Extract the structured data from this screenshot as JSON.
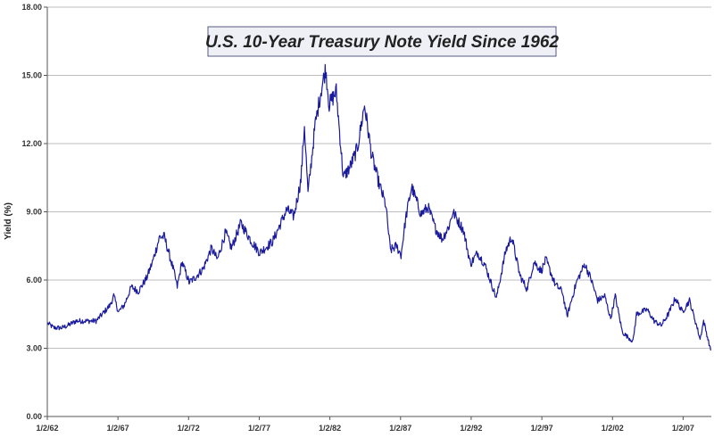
{
  "chart_data": {
    "type": "line",
    "title": "U.S. 10-Year Treasury Note Yield Since 1962",
    "xlabel": "",
    "ylabel": "Yield (%)",
    "ylim": [
      0,
      18
    ],
    "xlim": [
      "1/2/62",
      "12/31/08"
    ],
    "y_ticks": [
      "0.00",
      "3.00",
      "6.00",
      "9.00",
      "12.00",
      "15.00",
      "18.00"
    ],
    "x_ticks": [
      "1/2/62",
      "1/2/67",
      "1/2/72",
      "1/2/77",
      "1/2/82",
      "1/2/87",
      "1/2/92",
      "1/2/97",
      "1/2/02",
      "1/2/07"
    ],
    "grid": "horizontal",
    "line_color": "#1a1a9c",
    "series": [
      {
        "x": [
          "1962-01",
          "1962-06",
          "1963-01",
          "1963-06",
          "1964-01",
          "1964-06",
          "1965-01",
          "1965-06",
          "1966-01",
          "1966-06",
          "1966-09",
          "1967-01",
          "1967-06",
          "1967-12",
          "1968-06",
          "1969-01",
          "1969-06",
          "1969-12",
          "1970-04",
          "1970-12",
          "1971-03",
          "1971-07",
          "1972-01",
          "1972-06",
          "1973-01",
          "1973-08",
          "1974-01",
          "1974-08",
          "1975-01",
          "1975-09",
          "1976-06",
          "1977-01",
          "1977-12",
          "1978-06",
          "1978-12",
          "1979-06",
          "1979-12",
          "1980-03",
          "1980-06",
          "1980-12",
          "1981-05",
          "1981-09",
          "1981-12",
          "1982-06",
          "1982-12",
          "1983-06",
          "1983-12",
          "1984-06",
          "1984-12",
          "1985-06",
          "1985-12",
          "1986-04",
          "1986-09",
          "1987-01",
          "1987-05",
          "1987-10",
          "1988-06",
          "1988-12",
          "1989-06",
          "1989-12",
          "1990-06",
          "1990-09",
          "1991-06",
          "1991-12",
          "1992-06",
          "1992-12",
          "1993-06",
          "1993-10",
          "1994-06",
          "1994-11",
          "1995-06",
          "1995-12",
          "1996-06",
          "1996-12",
          "1997-04",
          "1997-12",
          "1998-06",
          "1998-10",
          "1999-06",
          "2000-01",
          "2000-06",
          "2000-12",
          "2001-06",
          "2001-11",
          "2002-03",
          "2002-09",
          "2003-06",
          "2003-09",
          "2004-06",
          "2004-12",
          "2005-06",
          "2005-12",
          "2006-06",
          "2006-12",
          "2007-06",
          "2007-12",
          "2008-03",
          "2008-06",
          "2008-12"
        ],
        "y": [
          4.1,
          3.9,
          3.9,
          4.0,
          4.2,
          4.2,
          4.2,
          4.2,
          4.6,
          4.9,
          5.3,
          4.6,
          4.9,
          5.7,
          5.5,
          6.1,
          6.8,
          7.9,
          7.9,
          6.4,
          5.7,
          6.8,
          5.9,
          6.1,
          6.5,
          7.4,
          6.9,
          8.1,
          7.4,
          8.5,
          7.7,
          7.2,
          7.7,
          8.4,
          9.1,
          8.8,
          10.4,
          12.8,
          9.8,
          12.8,
          14.3,
          15.3,
          13.7,
          14.3,
          10.5,
          11.0,
          11.8,
          13.7,
          11.5,
          10.3,
          9.3,
          7.3,
          7.5,
          7.1,
          8.7,
          10.1,
          8.9,
          9.2,
          8.3,
          7.8,
          8.4,
          9.0,
          8.2,
          6.7,
          7.2,
          6.7,
          5.8,
          5.2,
          7.3,
          7.9,
          6.2,
          5.6,
          6.8,
          6.4,
          6.9,
          5.8,
          5.5,
          4.4,
          5.9,
          6.7,
          6.1,
          5.1,
          5.3,
          4.3,
          5.3,
          3.7,
          3.3,
          4.5,
          4.7,
          4.2,
          4.0,
          4.5,
          5.2,
          4.6,
          5.1,
          4.0,
          3.4,
          4.2,
          2.9
        ]
      }
    ]
  }
}
